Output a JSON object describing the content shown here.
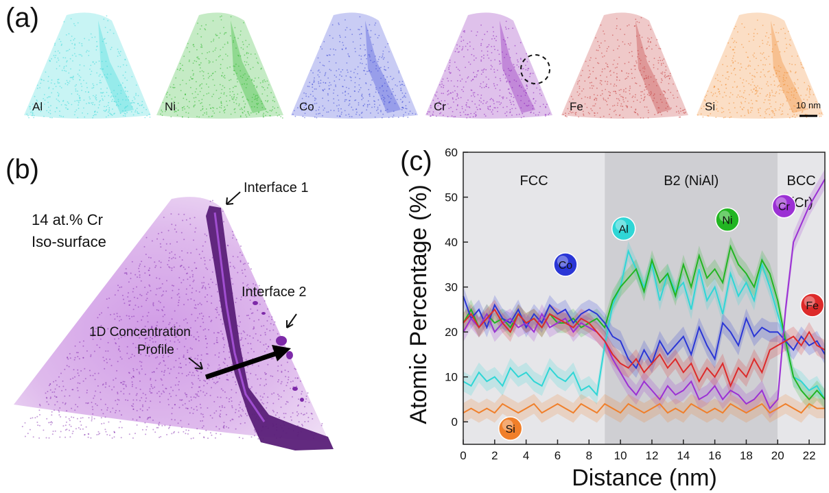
{
  "panel_a": {
    "label": "(a)",
    "elements": [
      {
        "name": "Al",
        "color": "#3ad9d9"
      },
      {
        "name": "Ni",
        "color": "#2db82d"
      },
      {
        "name": "Co",
        "color": "#3d49d6"
      },
      {
        "name": "Cr",
        "color": "#8b1fb8"
      },
      {
        "name": "Fe",
        "color": "#c43c3c"
      },
      {
        "name": "Si",
        "color": "#f08a2e"
      }
    ],
    "scale_bar": "10 nm"
  },
  "panel_b": {
    "label": "(b)",
    "iso_label_1": "14 at.% Cr",
    "iso_label_2": "Iso-surface",
    "interface1": "Interface 1",
    "interface2": "Interface 2",
    "profile_1": "1D Concentration",
    "profile_2": "Profile",
    "color": "#9b30c9"
  },
  "panel_c": {
    "label": "(c)"
  },
  "chart_data": {
    "type": "line",
    "xlabel": "Distance (nm)",
    "ylabel": "Atomic Percentage (%)",
    "xlim": [
      0,
      23
    ],
    "ylim": [
      -5,
      60
    ],
    "xticks": [
      0,
      2,
      4,
      6,
      8,
      10,
      12,
      14,
      16,
      18,
      20,
      22
    ],
    "yticks": [
      0,
      10,
      20,
      30,
      40,
      50,
      60
    ],
    "regions": [
      {
        "label": "FCC",
        "label2": "",
        "x0": 0,
        "x1": 9,
        "color": "#e6e6e9"
      },
      {
        "label": "B2 (NiAl)",
        "label2": "",
        "x0": 9,
        "x1": 20,
        "color": "#cfcfd3"
      },
      {
        "label": "BCC",
        "label2": "(Cr)",
        "x0": 20,
        "x1": 23,
        "color": "#e6e6e9"
      }
    ],
    "x": [
      0,
      0.5,
      1,
      1.5,
      2,
      2.5,
      3,
      3.5,
      4,
      4.5,
      5,
      5.5,
      6,
      6.5,
      7,
      7.5,
      8,
      8.5,
      9,
      9.5,
      10,
      10.5,
      11,
      11.5,
      12,
      12.5,
      13,
      13.5,
      14,
      14.5,
      15,
      15.5,
      16,
      16.5,
      17,
      17.5,
      18,
      18.5,
      19,
      19.5,
      20,
      20.5,
      21,
      21.5,
      22,
      22.5,
      23
    ],
    "series": [
      {
        "name": "Al",
        "color": "#2fd6d6",
        "label_x": 10.2,
        "label_y": 43,
        "values": [
          9,
          8,
          11,
          9,
          10,
          8,
          12,
          10,
          11,
          9,
          8,
          12,
          10,
          9,
          11,
          7,
          8,
          6,
          17,
          26,
          30,
          38,
          34,
          30,
          35,
          27,
          33,
          29,
          31,
          25,
          34,
          27,
          30,
          24,
          33,
          28,
          31,
          27,
          35,
          30,
          24,
          18,
          10,
          9,
          7,
          8,
          5
        ]
      },
      {
        "name": "Ni",
        "color": "#22b522",
        "label_x": 16.8,
        "label_y": 45,
        "values": [
          22,
          25,
          21,
          24,
          22,
          23,
          21,
          24,
          22,
          23,
          21,
          24,
          22,
          22,
          23,
          21,
          22,
          23,
          21,
          27,
          30,
          32,
          34,
          29,
          36,
          31,
          33,
          28,
          35,
          30,
          37,
          32,
          34,
          31,
          39,
          35,
          33,
          30,
          36,
          33,
          27,
          18,
          10,
          7,
          5,
          7,
          5
        ]
      },
      {
        "name": "Co",
        "color": "#2a36d6",
        "label_x": 6.5,
        "label_y": 35,
        "values": [
          28,
          23,
          25,
          21,
          26,
          23,
          22,
          25,
          21,
          24,
          22,
          26,
          24,
          25,
          22,
          24,
          25,
          24,
          22,
          19,
          18,
          14,
          12,
          16,
          13,
          18,
          15,
          17,
          19,
          15,
          21,
          17,
          14,
          22,
          20,
          17,
          23,
          19,
          21,
          20,
          20,
          18,
          16,
          19,
          17,
          18,
          15
        ]
      },
      {
        "name": "Cr",
        "color": "#9b30d4",
        "label_x": 20.4,
        "label_y": 48,
        "values": [
          20,
          23,
          21,
          24,
          20,
          22,
          23,
          21,
          22,
          20,
          24,
          21,
          22,
          23,
          20,
          22,
          21,
          20,
          18,
          14,
          11,
          8,
          6,
          9,
          7,
          5,
          8,
          6,
          7,
          9,
          5,
          6,
          8,
          5,
          7,
          6,
          4,
          5,
          7,
          3,
          5,
          25,
          40,
          44,
          48,
          51,
          54
        ]
      },
      {
        "name": "Fe",
        "color": "#dd2a2a",
        "label_x": 22.2,
        "label_y": 26,
        "values": [
          22,
          24,
          21,
          23,
          25,
          22,
          20,
          24,
          22,
          23,
          21,
          24,
          23,
          22,
          21,
          23,
          22,
          20,
          18,
          15,
          13,
          12,
          14,
          11,
          13,
          15,
          12,
          14,
          11,
          13,
          9,
          12,
          10,
          13,
          8,
          12,
          10,
          14,
          11,
          16,
          17,
          18,
          19,
          17,
          20,
          17,
          16
        ]
      },
      {
        "name": "Si",
        "color": "#f07f2a",
        "label_x": 3.0,
        "label_y": -1.5,
        "values": [
          2,
          3,
          2,
          3,
          2,
          4,
          3,
          2,
          3,
          4,
          2,
          3,
          4,
          3,
          2,
          4,
          3,
          2,
          4,
          3,
          2,
          4,
          3,
          2,
          3,
          4,
          2,
          3,
          2,
          4,
          3,
          2,
          3,
          2,
          4,
          3,
          2,
          3,
          4,
          2,
          3,
          4,
          3,
          2,
          4,
          3,
          3
        ]
      }
    ]
  }
}
